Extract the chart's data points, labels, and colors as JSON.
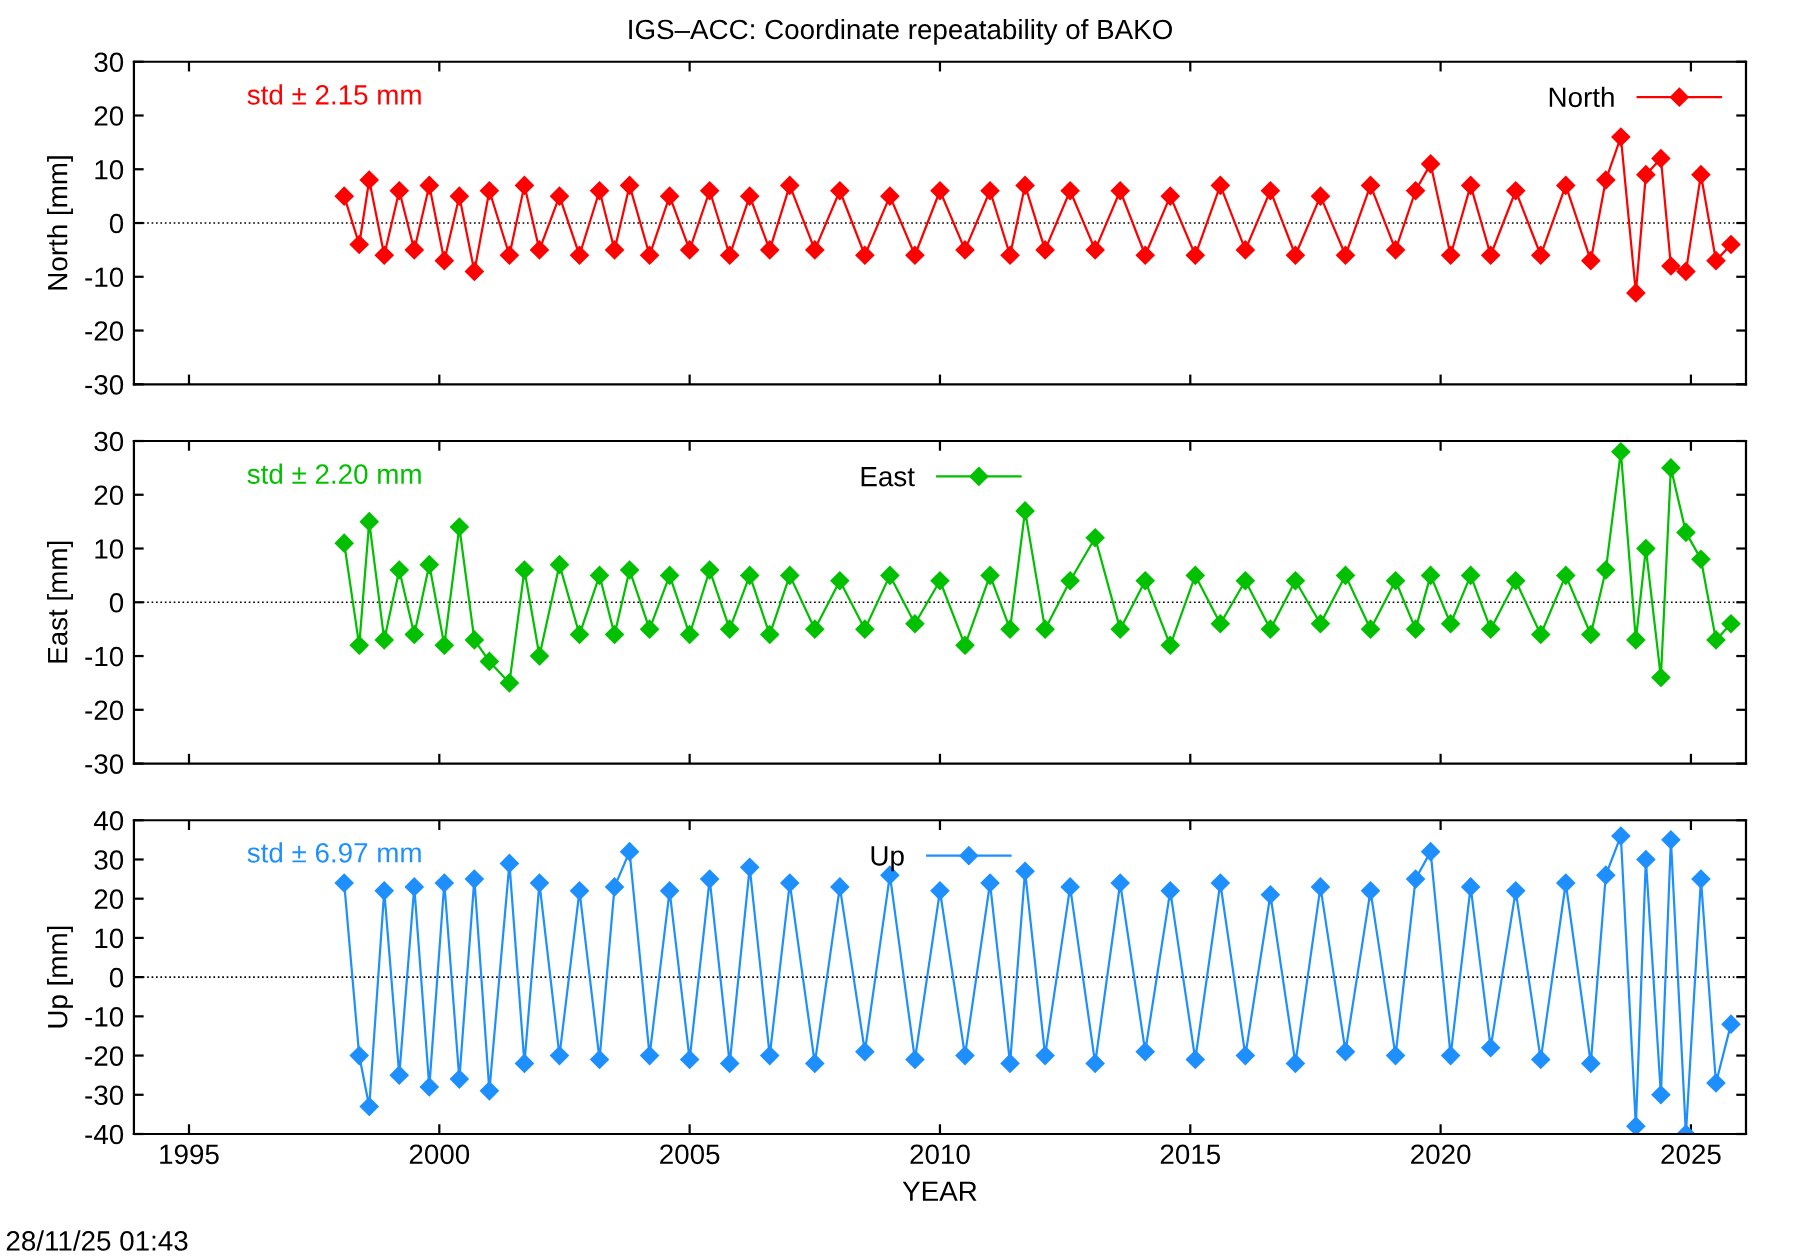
{
  "chart_data": [
    {
      "type": "line",
      "title": "IGS–ACC: Coordinate repeatability of BAKO",
      "ylabel": "North [mm]",
      "marker": "diamond",
      "line_style": "solid",
      "legend": "top right",
      "tick_labels": "y",
      "x": [
        1998.1,
        1998.4,
        1998.6,
        1998.9,
        1999.2,
        1999.5,
        1999.8,
        2000.1,
        2000.4,
        2000.7,
        2001.0,
        2001.4,
        2001.7,
        2002.0,
        2002.4,
        2002.8,
        2003.2,
        2003.5,
        2003.8,
        2004.2,
        2004.6,
        2005.0,
        2005.4,
        2005.8,
        2006.2,
        2006.6,
        2007.0,
        2007.5,
        2008.0,
        2008.5,
        2009.0,
        2009.5,
        2010.0,
        2010.5,
        2011.0,
        2011.4,
        2011.7,
        2012.1,
        2012.6,
        2013.1,
        2013.6,
        2014.1,
        2014.6,
        2015.1,
        2015.6,
        2016.1,
        2016.6,
        2017.1,
        2017.6,
        2018.1,
        2018.6,
        2019.1,
        2019.5,
        2019.8,
        2020.2,
        2020.6,
        2021.0,
        2021.5,
        2022.0,
        2022.5,
        2023.0,
        2023.3,
        2023.6,
        2023.9,
        2024.1,
        2024.4,
        2024.6,
        2024.9,
        2025.2,
        2025.5,
        2025.8
      ],
      "series": [
        {
          "name": "North",
          "color": "#ff0000",
          "values": [
            5,
            -4,
            8,
            -6,
            6,
            -5,
            7,
            -7,
            5,
            -9,
            6,
            -6,
            7,
            -5,
            5,
            -6,
            6,
            -5,
            7,
            -6,
            5,
            -5,
            6,
            -6,
            5,
            -5,
            7,
            -5,
            6,
            -6,
            5,
            -6,
            6,
            -5,
            6,
            -6,
            7,
            -5,
            6,
            -5,
            6,
            -6,
            5,
            -6,
            7,
            -5,
            6,
            -6,
            5,
            -6,
            7,
            -5,
            6,
            11,
            -6,
            7,
            -6,
            6,
            -6,
            7,
            -7,
            8,
            16,
            -13,
            9,
            12,
            -8,
            -9,
            9,
            -7,
            -4
          ]
        }
      ],
      "xlim": [
        1993.9,
        2026.1
      ],
      "xticks": [
        1995,
        2000,
        2005,
        2010,
        2015,
        2020,
        2025
      ],
      "ylim": [
        -30,
        30
      ],
      "yticks": [
        -30,
        -20,
        -10,
        0,
        10,
        20,
        30
      ],
      "ref_lines": [
        {
          "axis": "y",
          "value": 0,
          "color": "#000000",
          "line_style": "dotted"
        }
      ],
      "annotations": [
        "std ± 2.15 mm"
      ]
    },
    {
      "type": "line",
      "ylabel": "East [mm]",
      "marker": "diamond",
      "line_style": "solid",
      "legend": "top",
      "tick_labels": "y",
      "x": [
        1998.1,
        1998.4,
        1998.6,
        1998.9,
        1999.2,
        1999.5,
        1999.8,
        2000.1,
        2000.4,
        2000.7,
        2001.0,
        2001.4,
        2001.7,
        2002.0,
        2002.4,
        2002.8,
        2003.2,
        2003.5,
        2003.8,
        2004.2,
        2004.6,
        2005.0,
        2005.4,
        2005.8,
        2006.2,
        2006.6,
        2007.0,
        2007.5,
        2008.0,
        2008.5,
        2009.0,
        2009.5,
        2010.0,
        2010.5,
        2011.0,
        2011.4,
        2011.7,
        2012.1,
        2012.6,
        2013.1,
        2013.6,
        2014.1,
        2014.6,
        2015.1,
        2015.6,
        2016.1,
        2016.6,
        2017.1,
        2017.6,
        2018.1,
        2018.6,
        2019.1,
        2019.5,
        2019.8,
        2020.2,
        2020.6,
        2021.0,
        2021.5,
        2022.0,
        2022.5,
        2023.0,
        2023.3,
        2023.6,
        2023.9,
        2024.1,
        2024.4,
        2024.6,
        2024.9,
        2025.2,
        2025.5,
        2025.8
      ],
      "series": [
        {
          "name": "East",
          "color": "#00c000",
          "values": [
            11,
            -8,
            15,
            -7,
            6,
            -6,
            7,
            -8,
            14,
            -7,
            -11,
            -15,
            6,
            -10,
            7,
            -6,
            5,
            -6,
            6,
            -5,
            5,
            -6,
            6,
            -5,
            5,
            -6,
            5,
            -5,
            4,
            -5,
            5,
            -4,
            4,
            -8,
            5,
            -5,
            17,
            -5,
            4,
            12,
            -5,
            4,
            -8,
            5,
            -4,
            4,
            -5,
            4,
            -4,
            5,
            -5,
            4,
            -5,
            5,
            -4,
            5,
            -5,
            4,
            -6,
            5,
            -6,
            6,
            28,
            -7,
            10,
            -14,
            25,
            13,
            8,
            -7,
            -4
          ]
        }
      ],
      "xlim": [
        1993.9,
        2026.1
      ],
      "xticks": [
        1995,
        2000,
        2005,
        2010,
        2015,
        2020,
        2025
      ],
      "ylim": [
        -30,
        30
      ],
      "yticks": [
        -30,
        -20,
        -10,
        0,
        10,
        20,
        30
      ],
      "ref_lines": [
        {
          "axis": "y",
          "value": 0,
          "color": "#000000",
          "line_style": "dotted"
        }
      ],
      "annotations": [
        "std ± 2.20 mm"
      ]
    },
    {
      "type": "line",
      "ylabel": "Up [mm]",
      "xlabel": "YEAR",
      "marker": "diamond",
      "line_style": "solid",
      "legend": "top",
      "x": [
        1998.1,
        1998.4,
        1998.6,
        1998.9,
        1999.2,
        1999.5,
        1999.8,
        2000.1,
        2000.4,
        2000.7,
        2001.0,
        2001.4,
        2001.7,
        2002.0,
        2002.4,
        2002.8,
        2003.2,
        2003.5,
        2003.8,
        2004.2,
        2004.6,
        2005.0,
        2005.4,
        2005.8,
        2006.2,
        2006.6,
        2007.0,
        2007.5,
        2008.0,
        2008.5,
        2009.0,
        2009.5,
        2010.0,
        2010.5,
        2011.0,
        2011.4,
        2011.7,
        2012.1,
        2012.6,
        2013.1,
        2013.6,
        2014.1,
        2014.6,
        2015.1,
        2015.6,
        2016.1,
        2016.6,
        2017.1,
        2017.6,
        2018.1,
        2018.6,
        2019.1,
        2019.5,
        2019.8,
        2020.2,
        2020.6,
        2021.0,
        2021.5,
        2022.0,
        2022.5,
        2023.0,
        2023.3,
        2023.6,
        2023.9,
        2024.1,
        2024.4,
        2024.6,
        2024.9,
        2025.2,
        2025.5,
        2025.8
      ],
      "series": [
        {
          "name": "Up",
          "color": "#1e8fff",
          "values": [
            24,
            -20,
            -33,
            22,
            -25,
            23,
            -28,
            24,
            -26,
            25,
            -29,
            29,
            -22,
            24,
            -20,
            22,
            -21,
            23,
            32,
            -20,
            22,
            -21,
            25,
            -22,
            28,
            -20,
            24,
            -22,
            23,
            -19,
            26,
            -21,
            22,
            -20,
            24,
            -22,
            27,
            -20,
            23,
            -22,
            24,
            -19,
            22,
            -21,
            24,
            -20,
            21,
            -22,
            23,
            -19,
            22,
            -20,
            25,
            32,
            -20,
            23,
            -18,
            22,
            -21,
            24,
            -22,
            26,
            36,
            -38,
            30,
            -30,
            35,
            -40,
            25,
            -27,
            -12
          ]
        }
      ],
      "xlim": [
        1993.9,
        2026.1
      ],
      "xticks": [
        1995,
        2000,
        2005,
        2010,
        2015,
        2020,
        2025
      ],
      "ylim": [
        -40,
        40
      ],
      "yticks": [
        -40,
        -30,
        -20,
        -10,
        0,
        10,
        20,
        30,
        40
      ],
      "ref_lines": [
        {
          "axis": "y",
          "value": 0,
          "color": "#000000",
          "line_style": "dotted"
        }
      ],
      "annotations": [
        "std ± 6.97 mm",
        "28/11/25 01:43"
      ]
    }
  ]
}
